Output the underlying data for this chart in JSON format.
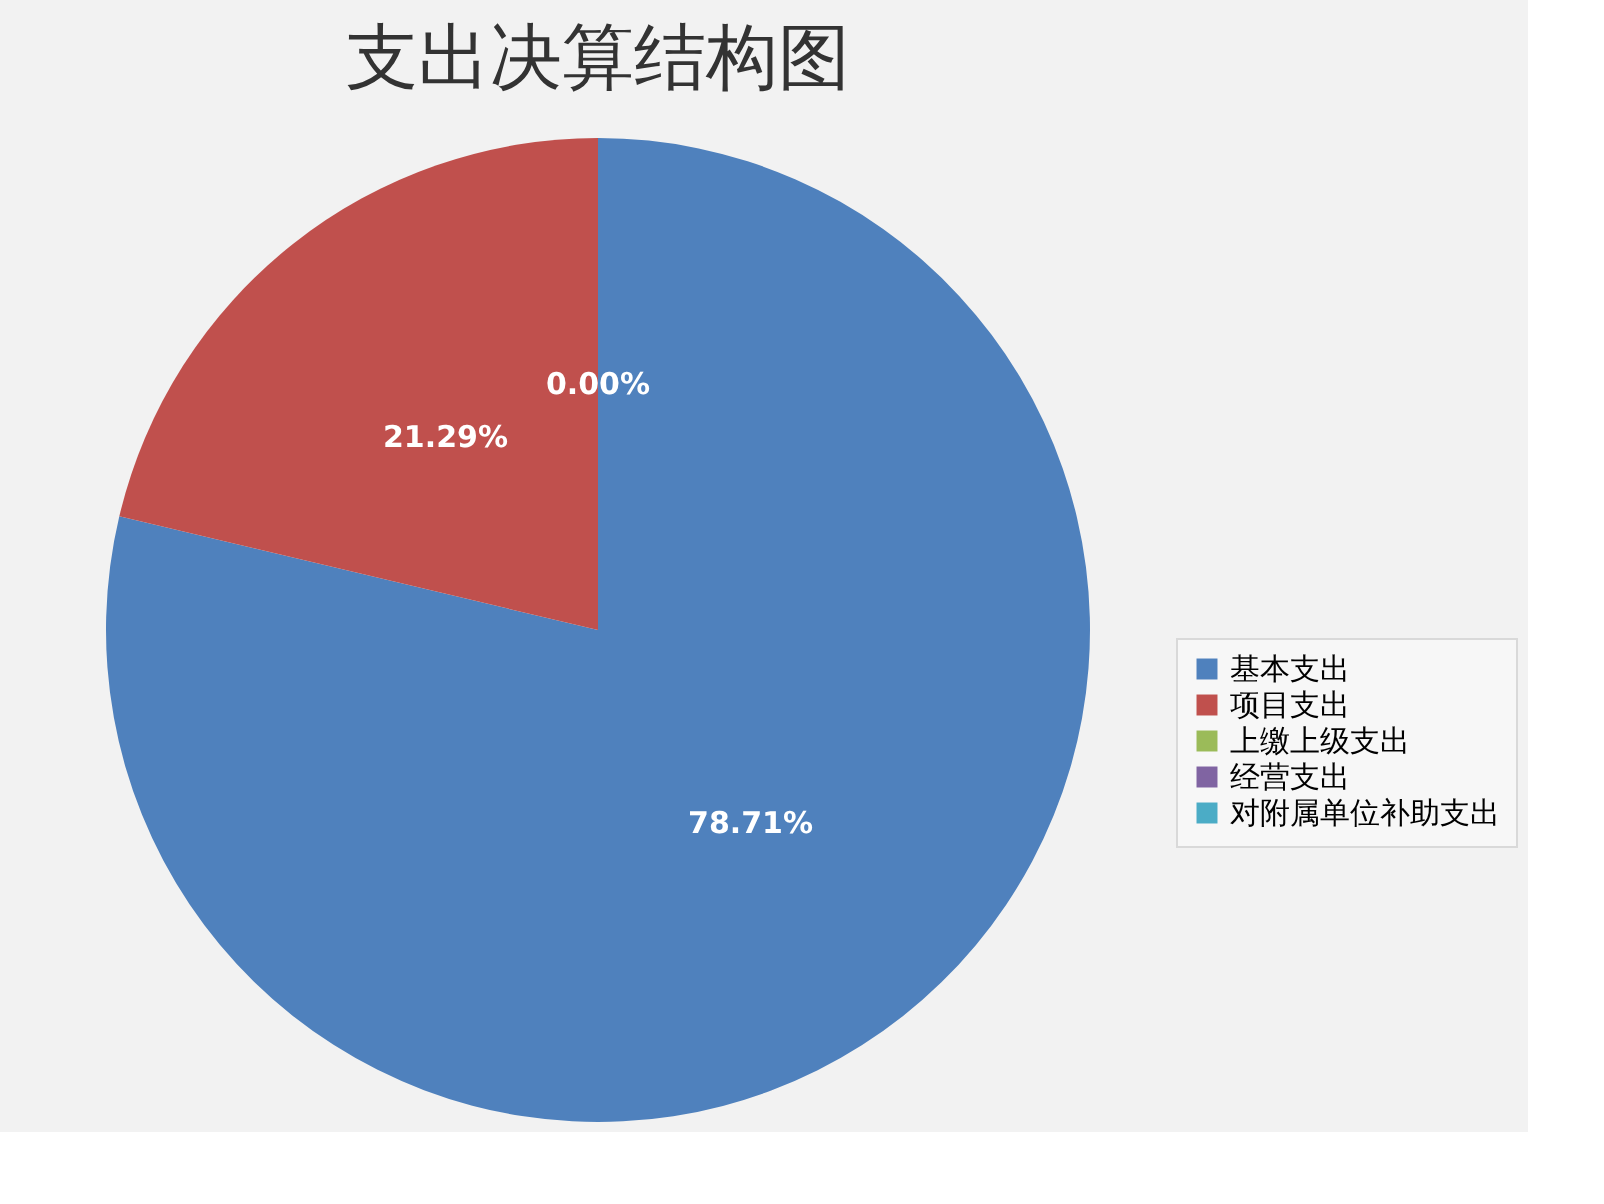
{
  "chart_data": {
    "type": "pie",
    "title": "支出决算结构图",
    "categories": [
      "基本支出",
      "项目支出",
      "上缴上级支出",
      "经营支出",
      "对附属单位补助支出"
    ],
    "values": [
      78.71,
      21.29,
      0,
      0,
      0
    ],
    "colors": [
      "#4f81bd",
      "#c0504d",
      "#9bbb59",
      "#8064a2",
      "#4bacc6"
    ],
    "value_labels": [
      "78.71%",
      "21.29%",
      "0.00%",
      null,
      null
    ],
    "legend": "right"
  }
}
